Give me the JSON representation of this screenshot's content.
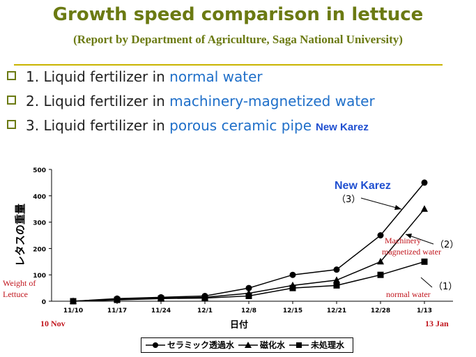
{
  "slide": {
    "title": "Growth speed comparison in lettuce",
    "subtitle": "(Report by Department of Agriculture, Saga National University)",
    "bullets": [
      {
        "prefix": "1. Liquid fertilizer in ",
        "highlight": "normal water",
        "tag": ""
      },
      {
        "prefix": "2. Liquid fertilizer in ",
        "highlight": "machinery-magnetized water",
        "tag": ""
      },
      {
        "prefix": "3. Liquid fertilizer in ",
        "highlight": "porous ceramic pipe",
        "tag": "New Karez"
      }
    ],
    "colors": {
      "title": "#6b7a12",
      "highlight": "#1f6fc9",
      "annotation_red": "#c0141c",
      "annotation_blue": "#1f4fd0"
    }
  },
  "chart_data": {
    "type": "line",
    "categories": [
      "11/10",
      "11/17",
      "11/24",
      "12/1",
      "12/8",
      "12/15",
      "12/21",
      "12/28",
      "1/13"
    ],
    "y_ticks": [
      "0",
      "100",
      "200",
      "300",
      "400",
      "500"
    ],
    "ylim": [
      0,
      500
    ],
    "xlabel": "日付",
    "ylabel": "レタスの重量",
    "series": [
      {
        "name": "セラミック透過水",
        "marker": "circle",
        "values": [
          0,
          10,
          15,
          20,
          50,
          100,
          120,
          250,
          450
        ]
      },
      {
        "name": "磁化水",
        "marker": "triangle",
        "values": [
          0,
          8,
          12,
          15,
          30,
          60,
          80,
          150,
          350
        ]
      },
      {
        "name": "未処理水",
        "marker": "square",
        "values": [
          0,
          5,
          10,
          12,
          20,
          50,
          60,
          100,
          150
        ]
      }
    ],
    "annotations": {
      "new_karez": "New Karez",
      "label_3": "（3）",
      "label_2": "（2）",
      "label_1": "（1）",
      "machinery_1": "Machinery",
      "machinery_2": "magnetized water",
      "normal_water": "normal water",
      "weight_1": "Weight of",
      "weight_2": "Lettuce",
      "start_date": "10 Nov",
      "end_date": "13 Jan"
    },
    "grid": false,
    "legend": "bottom-center"
  }
}
